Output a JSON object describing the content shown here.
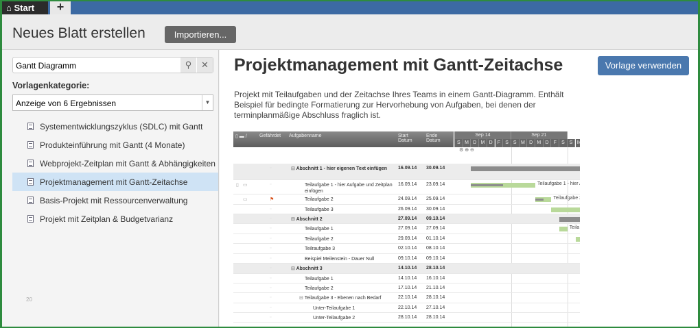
{
  "tabs": {
    "start": "Start",
    "add": "+"
  },
  "header": {
    "title": "Neues Blatt erstellen",
    "import": "Importieren..."
  },
  "sidebar": {
    "search_value": "Gantt Diagramm",
    "category_label": "Vorlagenkategorie:",
    "select_value": "Anzeige von 6 Ergebnissen",
    "page_number": "20",
    "items": [
      {
        "label": "Systementwicklungszyklus (SDLC) mit Gantt"
      },
      {
        "label": "Produkteinführung mit Gantt (4 Monate)"
      },
      {
        "label": "Webprojekt-Zeitplan mit Gantt & Abhängigkeiten"
      },
      {
        "label": "Projektmanagement mit Gantt-Zeitachse",
        "selected": true
      },
      {
        "label": "Basis-Projekt mit Ressourcenverwaltung"
      },
      {
        "label": "Projekt mit Zeitplan & Budgetvarianz"
      }
    ]
  },
  "main": {
    "title": "Projektmanagement mit Gantt-Zeitachse",
    "use_button": "Vorlage verwenden",
    "description": "Projekt mit Teilaufgaben und der Zeitachse Ihres Teams in einem Gantt-Diagramm. Enthält Beispiel für bedingte Formatierung zur Hervorhebung von Aufgaben, bei denen der terminplanmäßige Abschluss fraglich ist."
  },
  "gantt": {
    "columns": {
      "at_risk": "Gefährdet",
      "name": "Aufgabenname",
      "start": "Start Datum",
      "end": "Ende Datum"
    },
    "weeks": [
      "Sep 14",
      "Sep 21"
    ],
    "days": [
      "S",
      "M",
      "D",
      "M",
      "D",
      "F",
      "S",
      "S",
      "M",
      "D",
      "M",
      "D",
      "F",
      "S",
      "S",
      "M"
    ],
    "colors": {
      "summary": "#8c8c8c",
      "task": "#b9d99a",
      "progress": "#8c8c8c",
      "flag": "#d9541e"
    },
    "rows": [
      {
        "name": "Abschnitt 1 - hier eigenen Text einfügen",
        "start": "16.09.14",
        "end": "30.09.14",
        "level": 0,
        "section": true
      },
      {
        "name": "Teilaufgabe 1 - hier Aufgabe und Zeitplan einfügen",
        "start": "16.09.14",
        "end": "23.09.14",
        "level": 1,
        "attach": true,
        "comment": true,
        "progress": 0.5,
        "bar_label": "Teilaufgabe 1 - hier Au"
      },
      {
        "name": "Teilaufgabe 2",
        "start": "24.09.14",
        "end": "25.09.14",
        "level": 1,
        "comment": true,
        "flag": true,
        "progress": 0.5,
        "bar_label": "Teilaufgabe 2"
      },
      {
        "name": "Teilaufgabe 3",
        "start": "26.09.14",
        "end": "30.09.14",
        "level": 1
      },
      {
        "name": "Abschnitt 2",
        "start": "27.09.14",
        "end": "09.10.14",
        "level": 0,
        "section": true
      },
      {
        "name": "Teilaufgabe 1",
        "start": "27.09.14",
        "end": "27.09.14",
        "level": 1,
        "bar_label": "Teila"
      },
      {
        "name": "Teilaufgabe 2",
        "start": "29.09.14",
        "end": "01.10.14",
        "level": 1
      },
      {
        "name": "Teilraufgabe 3",
        "start": "02.10.14",
        "end": "08.10.14",
        "level": 1
      },
      {
        "name": "Beispiel Meilenstein - Dauer Null",
        "start": "09.10.14",
        "end": "09.10.14",
        "level": 1
      },
      {
        "name": "Abschnitt 3",
        "start": "14.10.14",
        "end": "28.10.14",
        "level": 0,
        "section": true
      },
      {
        "name": "Teilaufgabe 1",
        "start": "14.10.14",
        "end": "16.10.14",
        "level": 1
      },
      {
        "name": "Teilaufgabe 2",
        "start": "17.10.14",
        "end": "21.10.14",
        "level": 1
      },
      {
        "name": "Teilaufgabe 3 - Ebenen nach Bedarf",
        "start": "22.10.14",
        "end": "28.10.14",
        "level": 1,
        "collapsible": true
      },
      {
        "name": "Unter-Teilaufgabe 1",
        "start": "22.10.14",
        "end": "27.10.14",
        "level": 2
      },
      {
        "name": "Unter-Teilaufgabe 2",
        "start": "28.10.14",
        "end": "28.10.14",
        "level": 2
      }
    ]
  }
}
